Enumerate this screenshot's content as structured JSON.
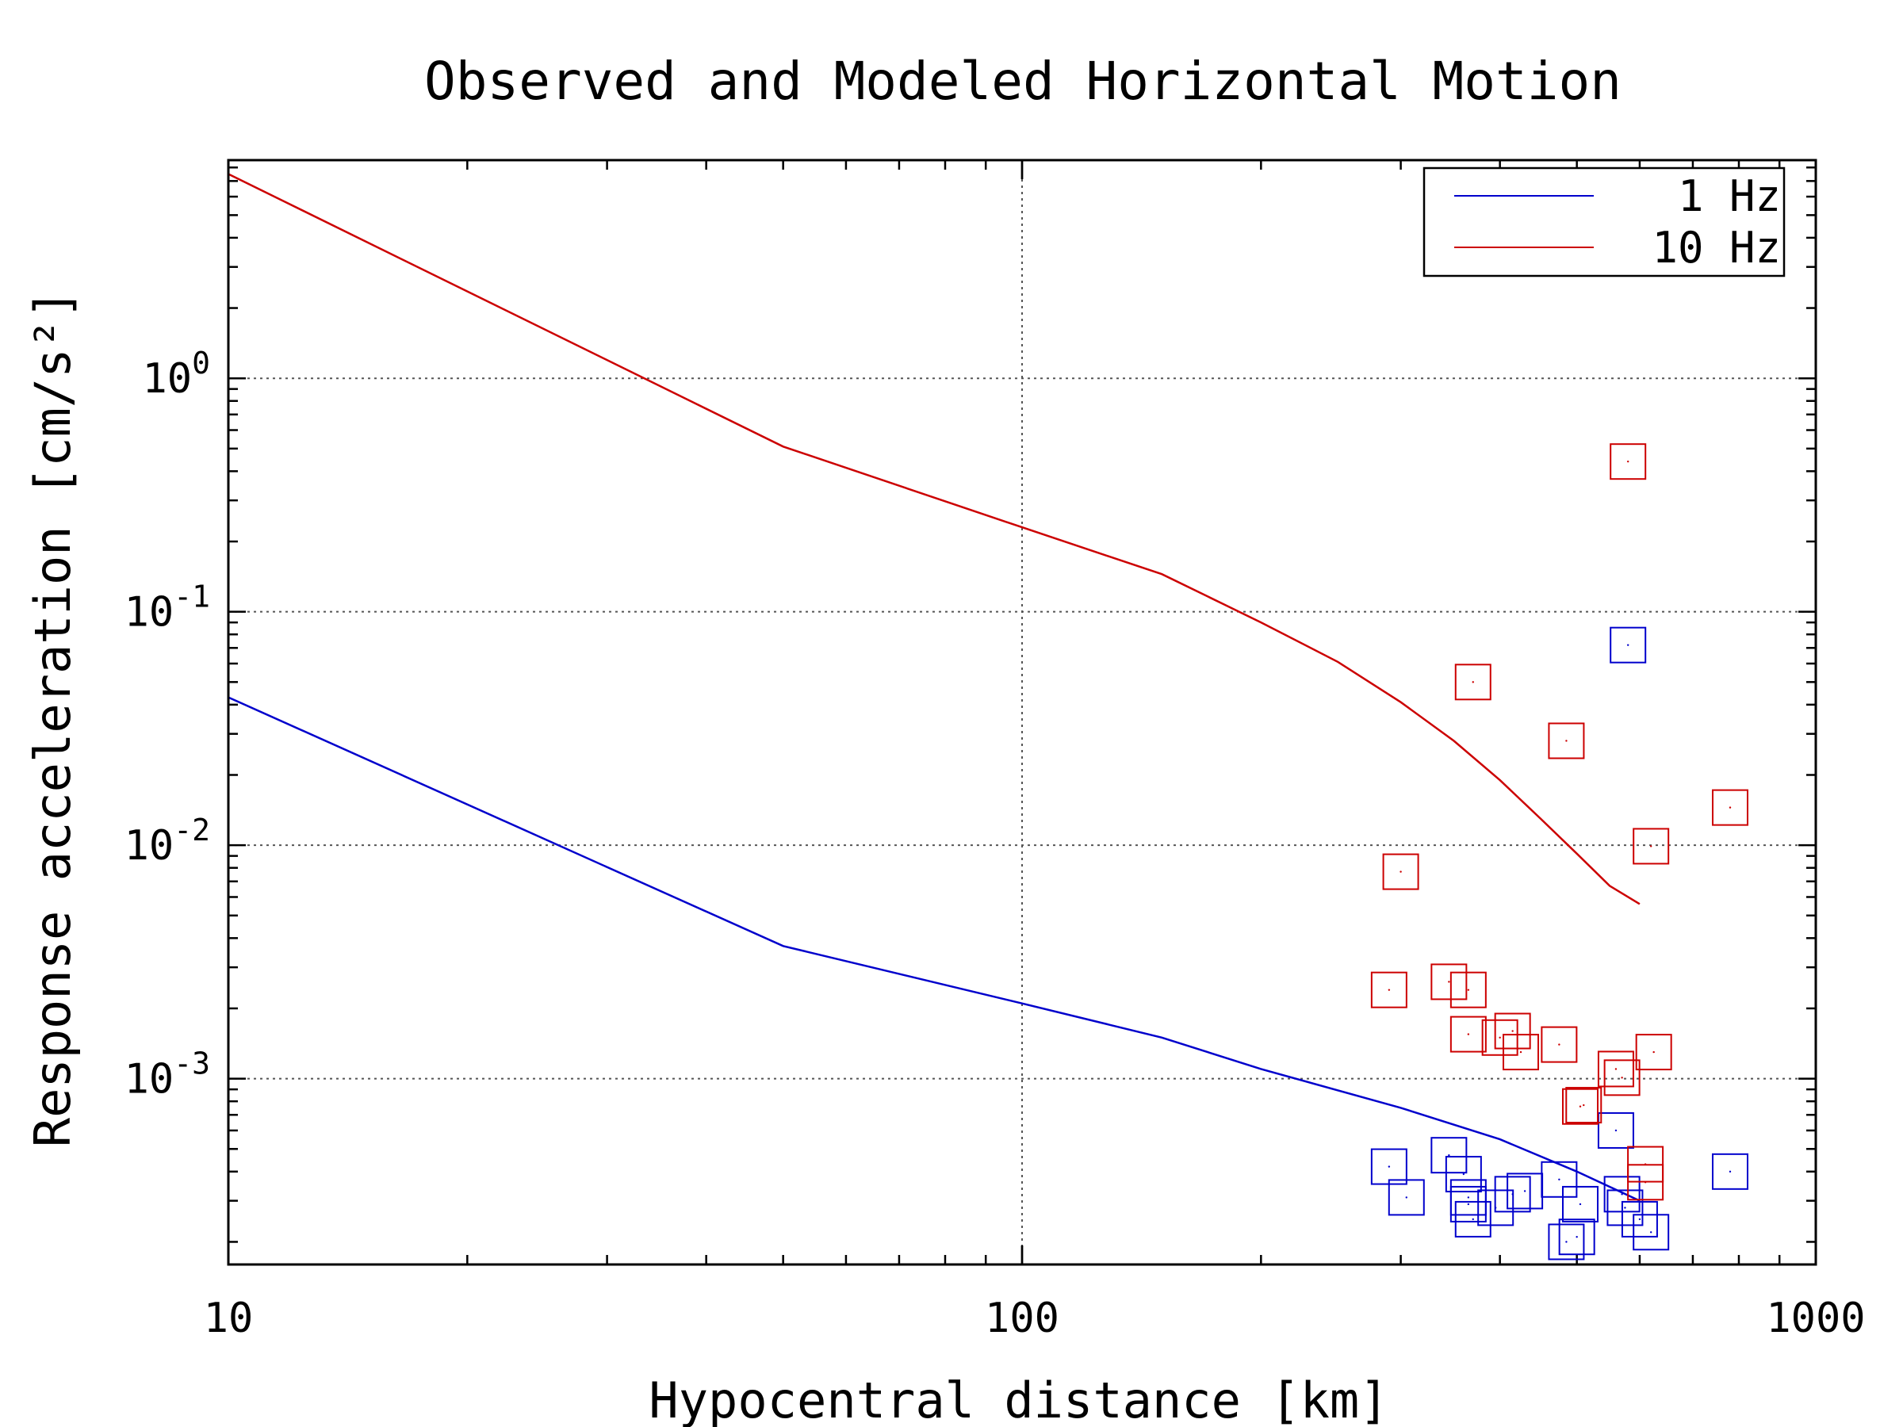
{
  "chart_data": {
    "type": "line+scatter",
    "title": "Observed and Modeled Horizontal Motion",
    "xlabel": "Hypocentral distance [km]",
    "ylabel": "Response acceleration [cm/s²]",
    "xscale": "log",
    "yscale": "log",
    "xlim": [
      10,
      1000
    ],
    "ylim": [
      0.00016,
      8.6
    ],
    "x_ticks": [
      {
        "value": 10,
        "label": "10"
      },
      {
        "value": 100,
        "label": "100"
      },
      {
        "value": 1000,
        "label": "1000"
      }
    ],
    "y_ticks": [
      {
        "value": 1,
        "mantissa": "10",
        "exponent": "0"
      },
      {
        "value": 0.1,
        "mantissa": "10",
        "exponent": "-1"
      },
      {
        "value": 0.01,
        "mantissa": "10",
        "exponent": "-2"
      },
      {
        "value": 0.001,
        "mantissa": "10",
        "exponent": "-3"
      }
    ],
    "grid": {
      "x_major": true,
      "y_major": true,
      "style": "dotted"
    },
    "legend": {
      "position": "top-right",
      "entries": [
        {
          "label": "1 Hz",
          "color": "#0000cc"
        },
        {
          "label": "10 Hz",
          "color": "#cc0000"
        }
      ]
    },
    "series": [
      {
        "name": "1 Hz",
        "kind": "line",
        "color": "#0000cc",
        "x": [
          10,
          50,
          100,
          150,
          200,
          300,
          400,
          500,
          600
        ],
        "y": [
          0.043,
          0.0037,
          0.0021,
          0.0015,
          0.0011,
          0.00075,
          0.00055,
          0.0004,
          0.0003
        ]
      },
      {
        "name": "10 Hz",
        "kind": "line",
        "color": "#cc0000",
        "x": [
          10,
          50,
          100,
          150,
          200,
          250,
          300,
          350,
          400,
          450,
          500,
          550,
          600
        ],
        "y": [
          7.5,
          0.51,
          0.23,
          0.145,
          0.09,
          0.061,
          0.041,
          0.028,
          0.019,
          0.013,
          0.0092,
          0.0067,
          0.0056
        ]
      },
      {
        "name": "1 Hz",
        "kind": "scatter",
        "marker": "square",
        "color": "#0000cc",
        "x": [
          580,
          290,
          305,
          345,
          360,
          365,
          365,
          370,
          395,
          415,
          430,
          475,
          485,
          500,
          505,
          560,
          570,
          575,
          600,
          620,
          780
        ],
        "y": [
          0.072,
          0.00042,
          0.00031,
          0.00047,
          0.00039,
          0.00031,
          0.00029,
          0.00025,
          0.00028,
          0.00032,
          0.00033,
          0.00037,
          0.0002,
          0.00021,
          0.00029,
          0.0006,
          0.00032,
          0.00028,
          0.00025,
          0.00022,
          0.0004
        ]
      },
      {
        "name": "10 Hz",
        "kind": "scatter",
        "marker": "square",
        "color": "#cc0000",
        "x": [
          580,
          370,
          485,
          300,
          620,
          780,
          290,
          345,
          365,
          365,
          400,
          415,
          425,
          475,
          505,
          510,
          560,
          570,
          625,
          610,
          610
        ],
        "y": [
          0.44,
          0.05,
          0.028,
          0.0077,
          0.0099,
          0.0145,
          0.0024,
          0.0026,
          0.0024,
          0.00155,
          0.0015,
          0.0016,
          0.0013,
          0.0014,
          0.00076,
          0.00077,
          0.0011,
          0.00101,
          0.0013,
          0.00043,
          0.00036
        ]
      }
    ]
  }
}
